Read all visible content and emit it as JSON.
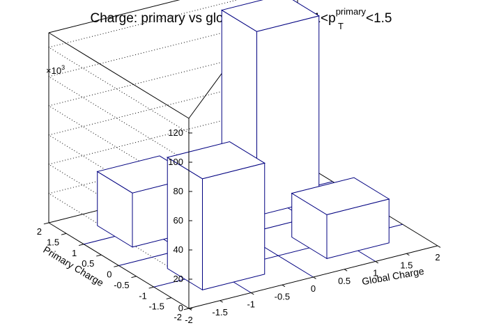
{
  "chart_data": {
    "type": "lego3d",
    "title_prefix": "Charge: primary vs global in FTPCAu 1<p",
    "title_sup": "primary",
    "title_sub": "T",
    "title_suffix": "<1.5",
    "xlabel": "Global Charge",
    "ylabel": "Primary Charge",
    "zscale_label": "×10",
    "zscale_exp": "3",
    "x_ticks": [
      "-2",
      "-1.5",
      "-1",
      "-0.5",
      "0",
      "0.5",
      "1",
      "1.5",
      "2"
    ],
    "y_ticks": [
      "-2",
      "-1.5",
      "-1",
      "-0.5",
      "0",
      "0.5",
      "1",
      "1.5",
      "2"
    ],
    "z_ticks": [
      "0",
      "20",
      "40",
      "60",
      "80",
      "100",
      "120"
    ],
    "xlim": [
      -2,
      2
    ],
    "ylim": [
      -2,
      2
    ],
    "zlim": [
      0,
      130
    ],
    "bars": [
      {
        "x": -1,
        "y": 1,
        "value": 37
      },
      {
        "x": 1,
        "y": -1,
        "value": 30
      },
      {
        "x": -1,
        "y": -1,
        "value": 76
      },
      {
        "x": 1,
        "y": 1,
        "value": 126
      }
    ],
    "colors": {
      "bar_edge": "#000080",
      "frame": "#000000",
      "bar_fill": "#ffffff"
    }
  }
}
